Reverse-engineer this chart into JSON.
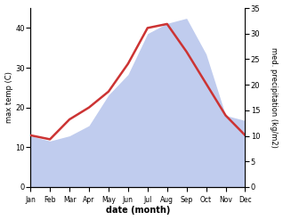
{
  "months": [
    "Jan",
    "Feb",
    "Mar",
    "Apr",
    "May",
    "Jun",
    "Jul",
    "Aug",
    "Sep",
    "Oct",
    "Nov",
    "Dec"
  ],
  "temp": [
    13,
    12,
    17,
    20,
    24,
    31,
    40,
    41,
    34,
    26,
    18,
    13
  ],
  "precip": [
    10,
    9,
    10,
    12,
    18,
    22,
    30,
    32,
    33,
    26,
    14,
    13
  ],
  "temp_color": "#cc3333",
  "precip_color": "#c0ccee",
  "left_ylabel": "max temp (C)",
  "right_ylabel": "med. precipitation (kg/m2)",
  "xlabel": "date (month)",
  "ylim_left": [
    0,
    45
  ],
  "ylim_right": [
    0,
    35
  ],
  "yticks_left": [
    0,
    10,
    20,
    30,
    40
  ],
  "yticks_right": [
    0,
    5,
    10,
    15,
    20,
    25,
    30,
    35
  ],
  "background_color": "#ffffff"
}
